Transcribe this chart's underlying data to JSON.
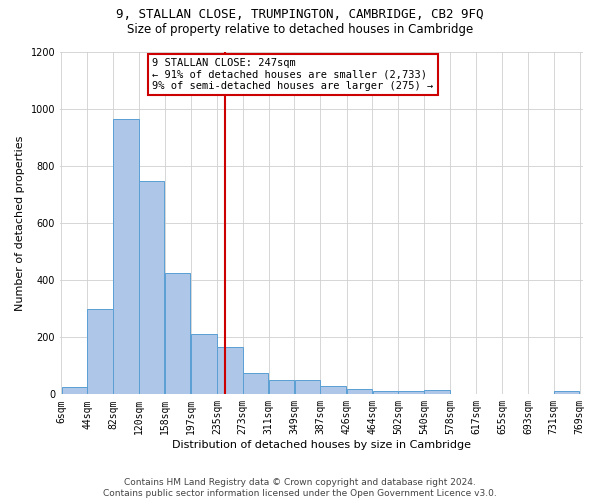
{
  "title": "9, STALLAN CLOSE, TRUMPINGTON, CAMBRIDGE, CB2 9FQ",
  "subtitle": "Size of property relative to detached houses in Cambridge",
  "xlabel": "Distribution of detached houses by size in Cambridge",
  "ylabel": "Number of detached properties",
  "footer_line1": "Contains HM Land Registry data © Crown copyright and database right 2024.",
  "footer_line2": "Contains public sector information licensed under the Open Government Licence v3.0.",
  "annotation_title": "9 STALLAN CLOSE: 247sqm",
  "annotation_line2": "← 91% of detached houses are smaller (2,733)",
  "annotation_line3": "9% of semi-detached houses are larger (275) →",
  "property_size": 247,
  "bar_edges": [
    6,
    44,
    82,
    120,
    158,
    197,
    235,
    273,
    311,
    349,
    387,
    426,
    464,
    502,
    540,
    578,
    617,
    655,
    693,
    731,
    769
  ],
  "bar_labels": [
    "6sqm",
    "44sqm",
    "82sqm",
    "120sqm",
    "158sqm",
    "197sqm",
    "235sqm",
    "273sqm",
    "311sqm",
    "349sqm",
    "387sqm",
    "426sqm",
    "464sqm",
    "502sqm",
    "540sqm",
    "578sqm",
    "617sqm",
    "655sqm",
    "693sqm",
    "731sqm",
    "769sqm"
  ],
  "bar_heights": [
    25,
    300,
    965,
    745,
    425,
    210,
    165,
    75,
    50,
    50,
    30,
    20,
    10,
    10,
    15,
    0,
    0,
    0,
    0,
    10,
    0
  ],
  "bar_color": "#aec6e8",
  "bar_edge_color": "#5a9fd4",
  "vline_x": 247,
  "vline_color": "#cc0000",
  "ylim": [
    0,
    1200
  ],
  "xlim": [
    6,
    769
  ],
  "background_color": "#ffffff",
  "grid_color": "#d0d0d0",
  "annotation_box_color": "#cc0000",
  "title_fontsize": 9,
  "subtitle_fontsize": 8.5,
  "ylabel_fontsize": 8,
  "xlabel_fontsize": 8,
  "tick_fontsize": 7,
  "footer_fontsize": 6.5,
  "annotation_fontsize": 7.5
}
